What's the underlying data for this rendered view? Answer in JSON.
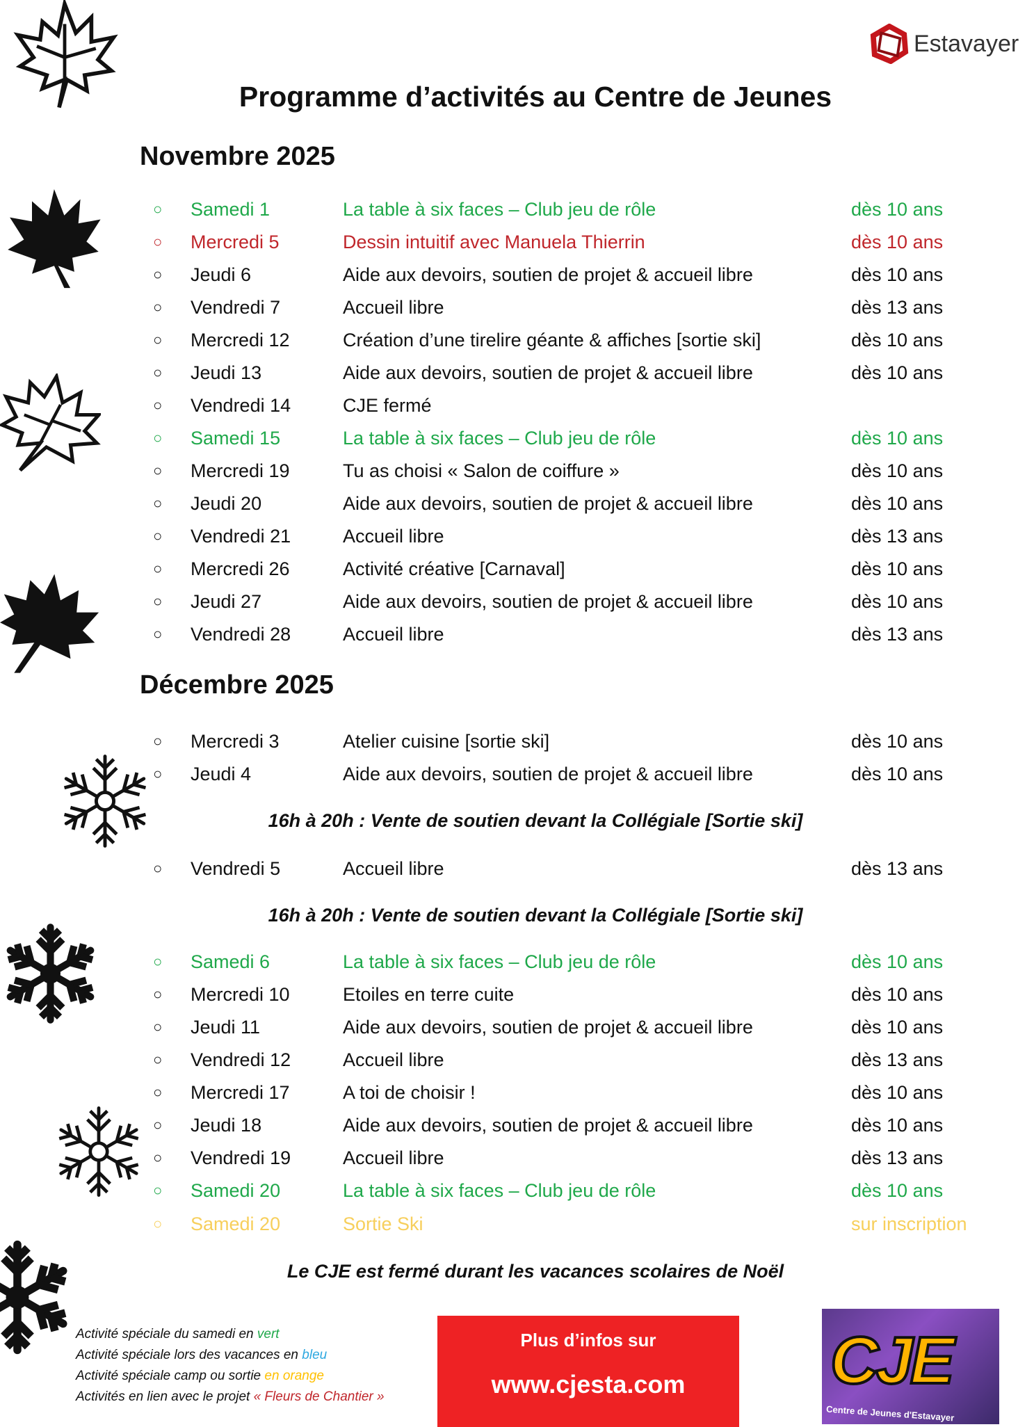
{
  "header": {
    "logo_text": "Estavayer",
    "title": "Programme d’activités au Centre de Jeunes"
  },
  "colors": {
    "green": "#1fa84a",
    "red": "#c0262b",
    "yellow": "#f7cf5c",
    "blue": "#2ea8e0",
    "orange": "#ffc000",
    "info_box": "#ee2224"
  },
  "november": {
    "heading": "Novembre 2025",
    "rows": [
      {
        "date": "Samedi 1",
        "activity": "La table à six faces – Club jeu de rôle",
        "age": "dès 10 ans",
        "color": "green"
      },
      {
        "date": "Mercredi 5",
        "activity": "Dessin intuitif avec Manuela Thierrin",
        "age": "dès 10 ans",
        "color": "red"
      },
      {
        "date": "Jeudi 6",
        "activity": "Aide aux devoirs, soutien de projet & accueil libre",
        "age": "dès 10 ans",
        "color": ""
      },
      {
        "date": "Vendredi 7",
        "activity": "Accueil libre",
        "age": "dès 13 ans",
        "color": ""
      },
      {
        "date": "Mercredi 12",
        "activity": "Création d’une tirelire géante & affiches [sortie ski]",
        "age": "dès 10 ans",
        "color": ""
      },
      {
        "date": "Jeudi 13",
        "activity": "Aide aux devoirs, soutien de projet & accueil libre",
        "age": "dès 10 ans",
        "color": ""
      },
      {
        "date": "Vendredi 14",
        "activity": "CJE fermé",
        "age": "",
        "color": ""
      },
      {
        "date": "Samedi 15",
        "activity": "La table à six faces – Club jeu de rôle",
        "age": "dès 10 ans",
        "color": "green"
      },
      {
        "date": "Mercredi 19",
        "activity": "Tu as choisi « Salon de coiffure »",
        "age": "dès 10 ans",
        "color": ""
      },
      {
        "date": "Jeudi 20",
        "activity": "Aide aux devoirs, soutien de projet & accueil libre",
        "age": "dès 10 ans",
        "color": ""
      },
      {
        "date": "Vendredi 21",
        "activity": "Accueil libre",
        "age": "dès 13 ans",
        "color": ""
      },
      {
        "date": "Mercredi 26",
        "activity": "Activité créative [Carnaval]",
        "age": "dès 10 ans",
        "color": ""
      },
      {
        "date": "Jeudi 27",
        "activity": "Aide aux devoirs, soutien de projet & accueil libre",
        "age": "dès 10 ans",
        "color": ""
      },
      {
        "date": "Vendredi 28",
        "activity": "Accueil libre",
        "age": "dès 13 ans",
        "color": ""
      }
    ]
  },
  "december": {
    "heading": "Décembre 2025",
    "items": [
      {
        "type": "row",
        "date": "Mercredi 3",
        "activity": "Atelier cuisine [sortie ski]",
        "age": "dès 10 ans",
        "color": ""
      },
      {
        "type": "row",
        "date": "Jeudi 4",
        "activity": "Aide aux devoirs, soutien de projet & accueil libre",
        "age": "dès 10 ans",
        "color": ""
      },
      {
        "type": "note",
        "text": "16h à 20h : Vente de soutien devant la Collégiale [Sortie ski]"
      },
      {
        "type": "row",
        "date": "Vendredi 5",
        "activity": "Accueil libre",
        "age": "dès 13 ans",
        "color": ""
      },
      {
        "type": "note",
        "text": "16h à 20h : Vente de soutien devant la Collégiale [Sortie ski]"
      },
      {
        "type": "row",
        "date": "Samedi 6",
        "activity": "La table à six faces – Club jeu de rôle",
        "age": "dès 10 ans",
        "color": "green"
      },
      {
        "type": "row",
        "date": "Mercredi 10",
        "activity": "Etoiles en terre cuite",
        "age": "dès 10 ans",
        "color": ""
      },
      {
        "type": "row",
        "date": "Jeudi 11",
        "activity": "Aide aux devoirs, soutien de projet & accueil libre",
        "age": "dès 10 ans",
        "color": ""
      },
      {
        "type": "row",
        "date": "Vendredi 12",
        "activity": "Accueil libre",
        "age": "dès 13 ans",
        "color": ""
      },
      {
        "type": "row",
        "date": "Mercredi 17",
        "activity": "A toi de choisir !",
        "age": "dès 10 ans",
        "color": ""
      },
      {
        "type": "row",
        "date": "Jeudi 18",
        "activity": "Aide aux devoirs, soutien de projet & accueil libre",
        "age": "dès 10 ans",
        "color": ""
      },
      {
        "type": "row",
        "date": "Vendredi 19",
        "activity": "Accueil libre",
        "age": "dès 13 ans",
        "color": ""
      },
      {
        "type": "row",
        "date": "Samedi 20",
        "activity": "La table à six faces – Club jeu de rôle",
        "age": "dès 10 ans",
        "color": "green"
      },
      {
        "type": "row",
        "date": "Samedi 20",
        "activity": "Sortie Ski",
        "age": "sur inscription",
        "color": "yellow"
      }
    ]
  },
  "closing_note": "Le CJE est fermé durant les vacances scolaires de Noël",
  "legend": [
    {
      "text": "Activité spéciale du samedi en ",
      "highlight": "vert",
      "color": "#1fa84a"
    },
    {
      "text": "Activité spéciale lors des vacances en ",
      "highlight": "bleu",
      "color": "#2ea8e0"
    },
    {
      "text": "Activité spéciale camp ou sortie ",
      "highlight": "en orange",
      "color": "#ffc000"
    },
    {
      "text": "Activités en lien avec le projet ",
      "highlight": "« Fleurs de Chantier »",
      "color": "#c0262b"
    }
  ],
  "info_box": {
    "line1": "Plus d’infos sur",
    "url": "www.cjesta.com"
  },
  "cje_logo": {
    "text": "CJE",
    "subtitle": "Centre de Jeunes d'Estavayer"
  },
  "bullet_glyph": "○"
}
